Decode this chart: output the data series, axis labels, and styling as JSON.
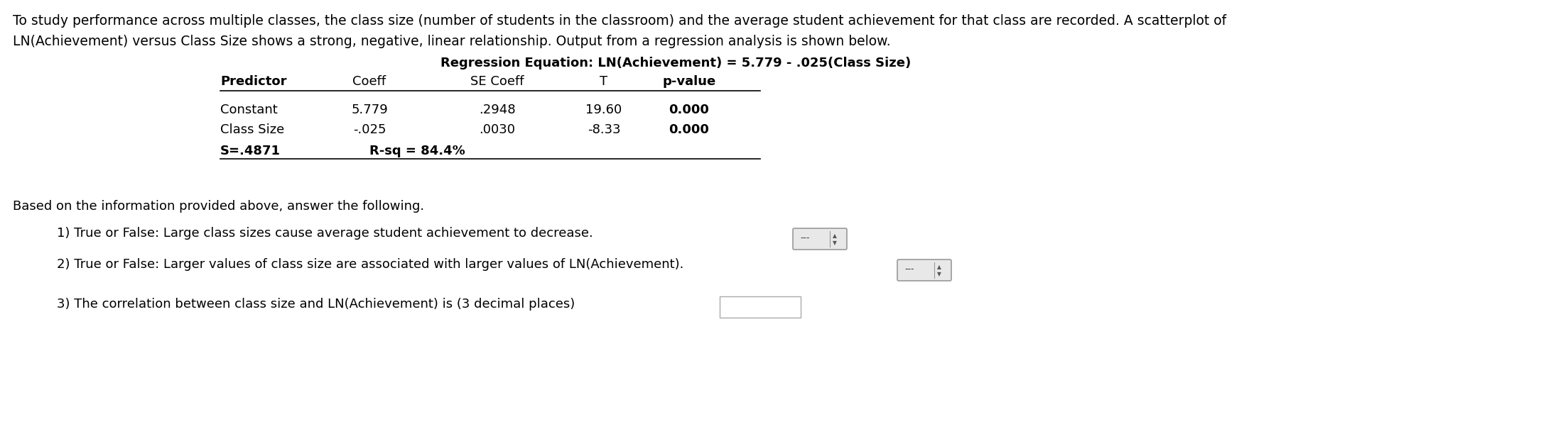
{
  "intro_text_line1": "To study performance across multiple classes, the class size (number of students in the classroom) and the average student achievement for that class are recorded. A scatterplot of",
  "intro_text_line2": "LN(Achievement) versus Class Size shows a strong, negative, linear relationship. Output from a regression analysis is shown below.",
  "table_title": "Regression Equation: LN(Achievement) = 5.779 - .025(Class Size)",
  "col_headers": [
    "Predictor",
    "Coeff",
    "SE Coeff",
    "T",
    "p-value"
  ],
  "row1": [
    "Constant",
    "5.779",
    ".2948",
    "19.60",
    "0.000"
  ],
  "row2": [
    "Class Size",
    "-.025",
    ".0030",
    "-8.33",
    "0.000"
  ],
  "footer_left": "S=.4871",
  "footer_right": "R-sq = 84.4%",
  "q_intro": "Based on the information provided above, answer the following.",
  "q1": "1) True or False: Large class sizes cause average student achievement to decrease.",
  "q2": "2) True or False: Larger values of class size are associated with larger values of LN(Achievement).",
  "q3": "3) The correlation between class size and LN(Achievement) is (3 decimal places)",
  "bg_color": "#ffffff",
  "text_color": "#000000"
}
